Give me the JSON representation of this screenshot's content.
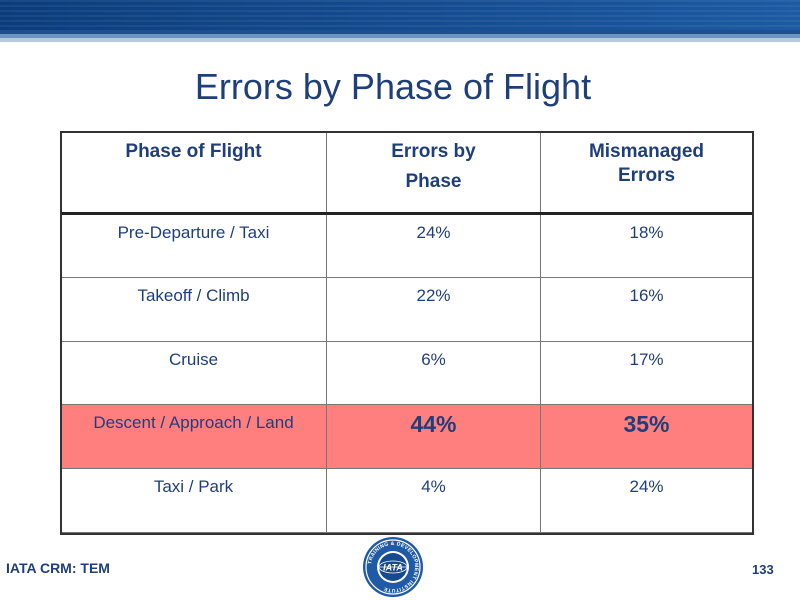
{
  "slide": {
    "title": "Errors by Phase of Flight",
    "footer_label": "IATA CRM: TEM",
    "page_number": "133",
    "logo": {
      "seal_text": "TRAINING & DEVELOPMENT INSTITUTE",
      "center_text": "IATA",
      "colors": {
        "outer": "#1f5aa6",
        "ring": "#ffffff",
        "inner": "#16498f"
      }
    }
  },
  "table": {
    "headers": [
      {
        "lines": [
          "Phase of Flight"
        ]
      },
      {
        "lines": [
          "Errors by",
          "Phase"
        ]
      },
      {
        "lines": [
          "Mismanaged",
          "Errors"
        ]
      }
    ],
    "rows": [
      {
        "phase": "Pre-Departure / Taxi",
        "errors": "24%",
        "mismanaged": "18%"
      },
      {
        "phase": "Takeoff / Climb",
        "errors": "22%",
        "mismanaged": "16%"
      },
      {
        "phase": "Cruise",
        "errors": "6%",
        "mismanaged": "17%"
      },
      {
        "phase": "Descent / Approach / Land",
        "errors": "44%",
        "mismanaged": "35%",
        "highlight_color": "#ff7f7f"
      },
      {
        "phase": "Taxi / Park",
        "errors": "4%",
        "mismanaged": "24%"
      }
    ]
  },
  "colors": {
    "text": "#1f3f7a",
    "header_band": "#0b3d7c"
  }
}
